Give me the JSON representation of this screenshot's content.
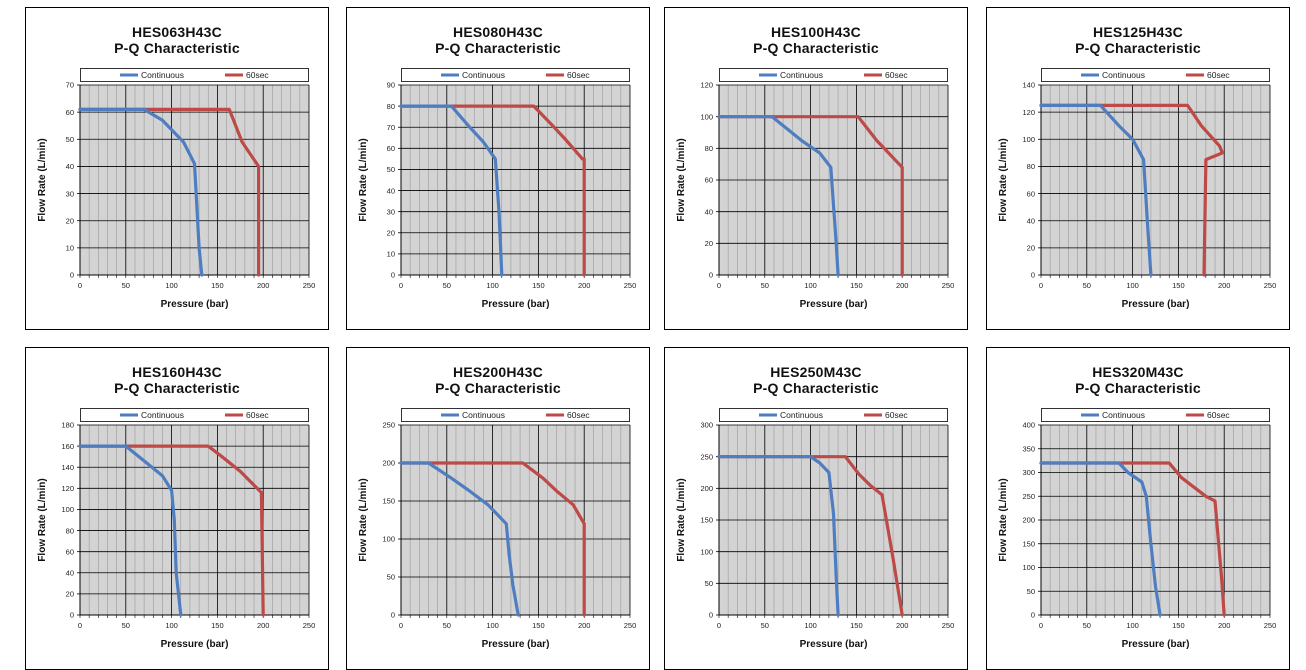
{
  "colors": {
    "continuous": "#4F7EC0",
    "sec60": "#BD4A46",
    "plot_background": "#D3D3D3",
    "grid_major": "#000000",
    "grid_minor": "#9A9A9A"
  },
  "chart_data": [
    {
      "type": "line",
      "title": "HES063H43C",
      "subtitle": "P-Q Characteristic",
      "xlabel": "Pressure (bar)",
      "ylabel": "Flow Rate (L/min)",
      "xlim": [
        0,
        250
      ],
      "ylim": [
        0,
        70
      ],
      "xticks": [
        0,
        50,
        100,
        150,
        200,
        250
      ],
      "yticks": [
        0,
        10,
        20,
        30,
        40,
        50,
        60,
        70
      ],
      "grid": true,
      "legend_position": "top",
      "series": [
        {
          "name": "Continuous",
          "x": [
            0,
            70,
            90,
            113,
            125,
            128,
            130,
            133
          ],
          "y": [
            61,
            61,
            57,
            49,
            41,
            23,
            10,
            0
          ]
        },
        {
          "name": "60sec",
          "x": [
            0,
            163,
            177,
            193,
            195,
            195
          ],
          "y": [
            61,
            61,
            49,
            41,
            40,
            0
          ]
        }
      ]
    },
    {
      "type": "line",
      "title": "HES080H43C",
      "subtitle": "P-Q Characteristic",
      "xlabel": "Pressure (bar)",
      "ylabel": "Flow Rate (L/min)",
      "xlim": [
        0,
        250
      ],
      "ylim": [
        0,
        90
      ],
      "xticks": [
        0,
        50,
        100,
        150,
        200,
        250
      ],
      "yticks": [
        0,
        10,
        20,
        30,
        40,
        50,
        60,
        70,
        80,
        90
      ],
      "grid": true,
      "legend_position": "top",
      "series": [
        {
          "name": "Continuous",
          "x": [
            0,
            55,
            75,
            90,
            103,
            107,
            110
          ],
          "y": [
            80,
            80,
            70,
            63,
            55,
            30,
            0
          ]
        },
        {
          "name": "60sec",
          "x": [
            0,
            145,
            165,
            180,
            198,
            200,
            200
          ],
          "y": [
            80,
            80,
            71,
            64,
            55,
            55,
            0
          ]
        }
      ]
    },
    {
      "type": "line",
      "title": "HES100H43C",
      "subtitle": "P-Q Characteristic",
      "xlabel": "Pressure (bar)",
      "ylabel": "Flow Rate (L/min)",
      "xlim": [
        0,
        250
      ],
      "ylim": [
        0,
        120
      ],
      "xticks": [
        0,
        50,
        100,
        150,
        200,
        250
      ],
      "yticks": [
        0,
        20,
        40,
        60,
        80,
        100,
        120
      ],
      "grid": true,
      "legend_position": "top",
      "series": [
        {
          "name": "Continuous",
          "x": [
            0,
            58,
            90,
            110,
            122,
            128,
            130
          ],
          "y": [
            100,
            100,
            85,
            77,
            68,
            20,
            0
          ]
        },
        {
          "name": "60sec",
          "x": [
            0,
            152,
            172,
            200,
            200
          ],
          "y": [
            100,
            100,
            85,
            68,
            0
          ]
        }
      ]
    },
    {
      "type": "line",
      "title": "HES125H43C",
      "subtitle": "P-Q Characteristic",
      "xlabel": "Pressure (bar)",
      "ylabel": "Flow Rate (L/min)",
      "xlim": [
        0,
        250
      ],
      "ylim": [
        0,
        140
      ],
      "xticks": [
        0,
        50,
        100,
        150,
        200,
        250
      ],
      "yticks": [
        0,
        20,
        40,
        60,
        80,
        100,
        120,
        140
      ],
      "grid": true,
      "legend_position": "top",
      "series": [
        {
          "name": "Continuous",
          "x": [
            0,
            65,
            85,
            100,
            112,
            116,
            120
          ],
          "y": [
            125,
            125,
            110,
            100,
            85,
            40,
            0
          ]
        },
        {
          "name": "60sec",
          "x": [
            0,
            160,
            175,
            195,
            198,
            180,
            178
          ],
          "y": [
            125,
            125,
            110,
            95,
            90,
            85,
            0
          ]
        }
      ]
    },
    {
      "type": "line",
      "title": "HES160H43C",
      "subtitle": "P-Q Characteristic",
      "xlabel": "Pressure (bar)",
      "ylabel": "Flow Rate (L/min)",
      "xlim": [
        0,
        250
      ],
      "ylim": [
        0,
        180
      ],
      "xticks": [
        0,
        50,
        100,
        150,
        200,
        250
      ],
      "yticks": [
        0,
        20,
        40,
        60,
        80,
        100,
        120,
        140,
        160,
        180
      ],
      "grid": true,
      "legend_position": "top",
      "series": [
        {
          "name": "Continuous",
          "x": [
            0,
            50,
            70,
            90,
            100,
            103,
            105,
            110
          ],
          "y": [
            160,
            160,
            146,
            132,
            118,
            90,
            40,
            0
          ]
        },
        {
          "name": "60sec",
          "x": [
            0,
            140,
            155,
            175,
            198,
            200
          ],
          "y": [
            160,
            160,
            150,
            136,
            116,
            0
          ]
        }
      ]
    },
    {
      "type": "line",
      "title": "HES200H43C",
      "subtitle": "P-Q Characteristic",
      "xlabel": "Pressure (bar)",
      "ylabel": "Flow Rate (L/min)",
      "xlim": [
        0,
        250
      ],
      "ylim": [
        0,
        250
      ],
      "xticks": [
        0,
        50,
        100,
        150,
        200,
        250
      ],
      "yticks": [
        0,
        50,
        100,
        150,
        200,
        250
      ],
      "grid": true,
      "legend_position": "top",
      "series": [
        {
          "name": "Continuous",
          "x": [
            0,
            30,
            55,
            75,
            95,
            115,
            118,
            122,
            128
          ],
          "y": [
            200,
            200,
            180,
            163,
            145,
            120,
            80,
            40,
            0
          ]
        },
        {
          "name": "60sec",
          "x": [
            0,
            133,
            155,
            170,
            188,
            200,
            200
          ],
          "y": [
            200,
            200,
            180,
            163,
            145,
            120,
            0
          ]
        }
      ]
    },
    {
      "type": "line",
      "title": "HES250M43C",
      "subtitle": "P-Q Characteristic",
      "xlabel": "Pressure (bar)",
      "ylabel": "Flow Rate (L/min)",
      "xlim": [
        0,
        250
      ],
      "ylim": [
        0,
        300
      ],
      "xticks": [
        0,
        50,
        100,
        150,
        200,
        250
      ],
      "yticks": [
        0,
        50,
        100,
        150,
        200,
        250,
        300
      ],
      "grid": true,
      "legend_position": "top",
      "series": [
        {
          "name": "Continuous",
          "x": [
            0,
            100,
            110,
            120,
            125,
            128,
            130
          ],
          "y": [
            250,
            250,
            240,
            225,
            160,
            60,
            0
          ]
        },
        {
          "name": "60sec",
          "x": [
            0,
            138,
            153,
            165,
            178,
            190,
            200
          ],
          "y": [
            250,
            250,
            222,
            205,
            190,
            90,
            0
          ]
        }
      ]
    },
    {
      "type": "line",
      "title": "HES320M43C",
      "subtitle": "P-Q Characteristic",
      "xlabel": "Pressure (bar)",
      "ylabel": "Flow Rate (L/min)",
      "xlim": [
        0,
        250
      ],
      "ylim": [
        0,
        400
      ],
      "xticks": [
        0,
        50,
        100,
        150,
        200,
        250
      ],
      "yticks": [
        0,
        50,
        100,
        150,
        200,
        250,
        300,
        350,
        400
      ],
      "grid": true,
      "legend_position": "top",
      "series": [
        {
          "name": "Continuous",
          "x": [
            0,
            85,
            95,
            110,
            115,
            120,
            125,
            130
          ],
          "y": [
            320,
            320,
            300,
            280,
            250,
            150,
            60,
            0
          ]
        },
        {
          "name": "60sec",
          "x": [
            0,
            140,
            153,
            165,
            180,
            190,
            197,
            200
          ],
          "y": [
            320,
            320,
            290,
            272,
            250,
            240,
            80,
            0
          ]
        }
      ]
    }
  ]
}
